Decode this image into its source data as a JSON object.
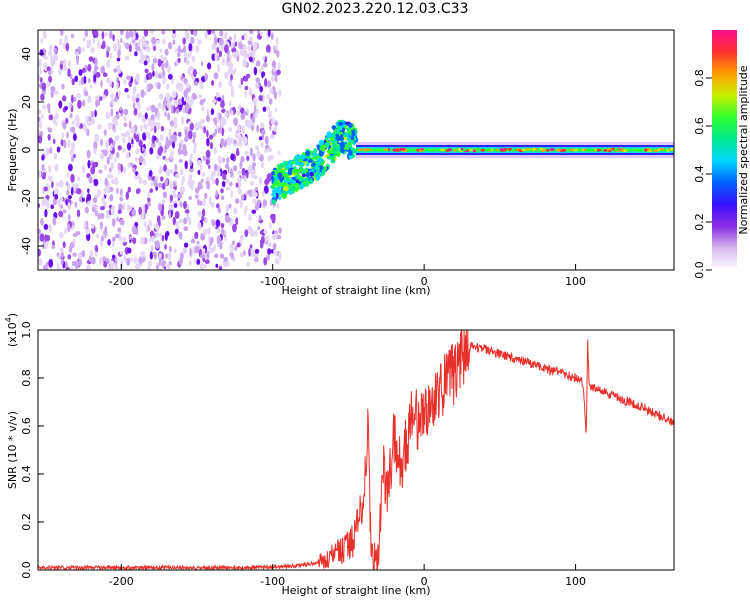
{
  "title": "GN02.2023.220.12.03.C33",
  "chart_data": [
    {
      "type": "heatmap",
      "xlabel": "Height of straight line (km)",
      "ylabel": "Frequency (Hz)",
      "xlim": [
        -255,
        165
      ],
      "ylim": [
        -50,
        50
      ],
      "xticks": [
        -200,
        -100,
        0,
        100
      ],
      "yticks": [
        -40,
        -20,
        0,
        20,
        40
      ],
      "colorbar": {
        "label": "Normalized spectral amplitude",
        "range": [
          0,
          1
        ],
        "ticks": [
          "0.0",
          "0.2",
          "0.4",
          "0.6",
          "0.8"
        ],
        "colormap": [
          "#ffffff",
          "#d8b8f0",
          "#8a2be2",
          "#3a10ff",
          "#0060ff",
          "#00d8ff",
          "#00e890",
          "#30ff30",
          "#c8f000",
          "#ffa000",
          "#ff3030",
          "#ff1090"
        ]
      },
      "features": {
        "noise_region_x": [
          -255,
          -95
        ],
        "transition_x": [
          -100,
          -45
        ],
        "carrier_track": {
          "x": [
            -45,
            165
          ],
          "frequency": 0
        },
        "transition_frequency": {
          "x": [
            -100,
            -70,
            -55,
            -45
          ],
          "frequency": [
            -15,
            -5,
            6,
            2
          ]
        }
      }
    },
    {
      "type": "line",
      "xlabel": "Height of straight line (km)",
      "ylabel": "SNR (10 * v/v)",
      "y_multiplier": "(x10",
      "y_multiplier_exp": "4",
      "y_multiplier_close": ")",
      "xlim": [
        -255,
        165
      ],
      "ylim": [
        0,
        1
      ],
      "xticks": [
        -200,
        -100,
        0,
        100
      ],
      "yticks": [
        "0.0",
        "0.2",
        "0.4",
        "0.6",
        "0.8",
        "1.0"
      ],
      "series": [
        {
          "color": "#e8302a",
          "x": [
            -255,
            -200,
            -150,
            -110,
            -90,
            -70,
            -60,
            -50,
            -45,
            -40,
            -37,
            -35,
            -32,
            -30,
            -27,
            -25,
            -20,
            -15,
            -10,
            -5,
            0,
            5,
            10,
            15,
            20,
            25,
            30,
            40,
            50,
            60,
            70,
            80,
            90,
            100,
            105,
            107,
            108,
            109,
            110,
            120,
            130,
            140,
            150,
            160,
            165
          ],
          "y": [
            0.01,
            0.01,
            0.01,
            0.01,
            0.015,
            0.03,
            0.06,
            0.1,
            0.15,
            0.32,
            0.6,
            0.05,
            0.05,
            0.1,
            0.45,
            0.3,
            0.55,
            0.4,
            0.6,
            0.62,
            0.7,
            0.68,
            0.75,
            0.78,
            0.82,
            0.9,
            0.93,
            0.92,
            0.9,
            0.88,
            0.86,
            0.84,
            0.82,
            0.8,
            0.78,
            0.55,
            0.95,
            0.76,
            0.76,
            0.74,
            0.71,
            0.69,
            0.66,
            0.63,
            0.61
          ]
        }
      ]
    }
  ]
}
